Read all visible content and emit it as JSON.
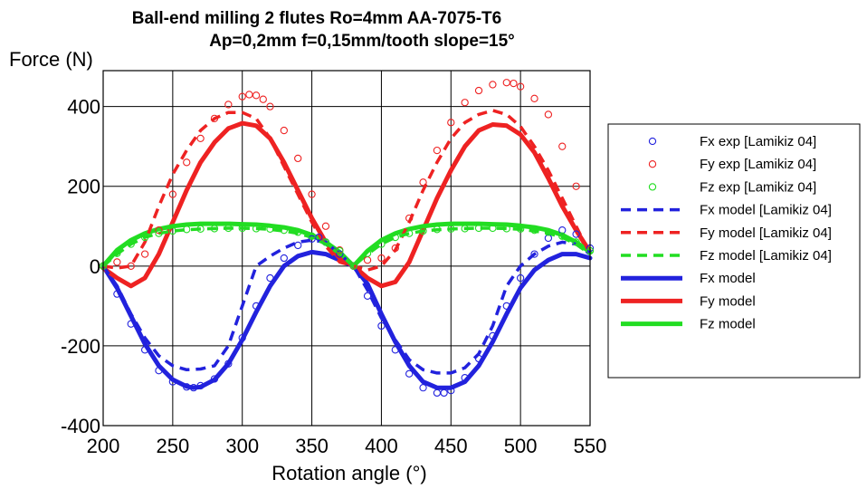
{
  "chart_data": {
    "type": "line",
    "title": "Ball-end milling 2 flutes Ro=4mm AA-7075-T6",
    "subtitle": "Ap=0,2mm f=0,15mm/tooth slope=15°",
    "xlabel": "Rotation angle (°)",
    "ylabel": "Force (N)",
    "xlim": [
      200,
      550
    ],
    "ylim": [
      -400,
      490
    ],
    "xticks": [
      200,
      250,
      300,
      350,
      400,
      450,
      500,
      550
    ],
    "yticks": [
      -400,
      -200,
      0,
      200,
      400
    ],
    "grid": true,
    "legend_position": "right",
    "series": [
      {
        "name": "Fx exp [Lamikiz 04]",
        "style": "markers",
        "color": "#2222dd",
        "x": [
          200,
          210,
          220,
          230,
          240,
          250,
          260,
          265,
          270,
          280,
          290,
          300,
          310,
          320,
          330,
          340,
          350,
          355,
          360,
          370,
          380,
          390,
          400,
          410,
          420,
          430,
          440,
          445,
          450,
          460,
          470,
          480,
          490,
          500,
          510,
          520,
          530,
          540,
          550
        ],
        "y": [
          0,
          -70,
          -145,
          -210,
          -262,
          -290,
          -303,
          -305,
          -300,
          -283,
          -245,
          -180,
          -100,
          -30,
          20,
          52,
          68,
          72,
          60,
          30,
          0,
          -75,
          -150,
          -210,
          -270,
          -305,
          -318,
          -318,
          -312,
          -280,
          -232,
          -175,
          -100,
          -30,
          30,
          70,
          90,
          80,
          45
        ]
      },
      {
        "name": "Fy exp [Lamikiz 04]",
        "style": "markers",
        "color": "#ee2222",
        "x": [
          200,
          210,
          220,
          230,
          240,
          250,
          260,
          270,
          280,
          290,
          300,
          305,
          310,
          315,
          320,
          330,
          340,
          350,
          360,
          370,
          380,
          390,
          400,
          410,
          420,
          430,
          440,
          450,
          460,
          470,
          480,
          490,
          495,
          500,
          510,
          520,
          530,
          540
        ],
        "y": [
          0,
          10,
          0,
          30,
          90,
          180,
          260,
          320,
          370,
          405,
          425,
          430,
          428,
          418,
          400,
          340,
          270,
          180,
          100,
          40,
          0,
          15,
          20,
          45,
          120,
          210,
          290,
          360,
          410,
          440,
          455,
          460,
          458,
          450,
          420,
          380,
          300,
          200
        ]
      },
      {
        "name": "Fz exp [Lamikiz 04]",
        "style": "markers",
        "color": "#22dd22",
        "x": [
          200,
          210,
          220,
          230,
          240,
          250,
          260,
          270,
          280,
          290,
          300,
          310,
          320,
          330,
          340,
          350,
          360,
          370,
          380,
          390,
          400,
          410,
          420,
          430,
          440,
          450,
          460,
          470,
          480,
          490,
          500,
          510,
          520,
          530,
          540,
          550
        ],
        "y": [
          0,
          32,
          55,
          72,
          82,
          88,
          92,
          93,
          94,
          95,
          95,
          94,
          93,
          90,
          85,
          75,
          60,
          38,
          0,
          32,
          55,
          72,
          82,
          88,
          92,
          93,
          94,
          95,
          95,
          94,
          93,
          90,
          85,
          75,
          60,
          38
        ]
      },
      {
        "name": "Fx model [Lamikiz 04]",
        "style": "dashed",
        "color": "#2222dd",
        "x": [
          200,
          210,
          220,
          230,
          240,
          250,
          260,
          270,
          280,
          290,
          300,
          310,
          320,
          330,
          340,
          350,
          360,
          370,
          380,
          390,
          400,
          410,
          420,
          430,
          440,
          450,
          460,
          470,
          480,
          490,
          500,
          510,
          520,
          530,
          540,
          550
        ],
        "y": [
          0,
          -50,
          -120,
          -180,
          -225,
          -250,
          -260,
          -258,
          -250,
          -200,
          -100,
          0,
          25,
          45,
          60,
          65,
          60,
          30,
          0,
          -60,
          -130,
          -185,
          -235,
          -260,
          -268,
          -268,
          -255,
          -220,
          -150,
          -50,
          0,
          30,
          50,
          60,
          55,
          30
        ]
      },
      {
        "name": "Fy model [Lamikiz 04]",
        "style": "dashed",
        "color": "#ee2222",
        "x": [
          200,
          210,
          220,
          230,
          240,
          250,
          260,
          270,
          280,
          290,
          300,
          310,
          320,
          330,
          340,
          350,
          360,
          370,
          380,
          390,
          400,
          410,
          420,
          430,
          440,
          450,
          460,
          470,
          480,
          490,
          500,
          510,
          520,
          530,
          540,
          550
        ],
        "y": [
          0,
          -5,
          0,
          60,
          150,
          230,
          290,
          340,
          370,
          385,
          385,
          370,
          320,
          250,
          180,
          110,
          50,
          10,
          0,
          -10,
          0,
          40,
          110,
          190,
          260,
          320,
          360,
          380,
          390,
          380,
          350,
          300,
          240,
          170,
          100,
          30
        ]
      },
      {
        "name": "Fz model [Lamikiz 04]",
        "style": "dashed",
        "color": "#22dd22",
        "x": [
          200,
          210,
          220,
          230,
          240,
          250,
          260,
          270,
          280,
          290,
          300,
          310,
          320,
          330,
          340,
          350,
          360,
          370,
          380,
          390,
          400,
          410,
          420,
          430,
          440,
          450,
          460,
          470,
          480,
          490,
          500,
          510,
          520,
          530,
          540,
          550
        ],
        "y": [
          0,
          30,
          55,
          72,
          82,
          88,
          91,
          93,
          94,
          95,
          95,
          94,
          92,
          88,
          82,
          72,
          55,
          30,
          0,
          30,
          55,
          72,
          82,
          88,
          91,
          93,
          94,
          95,
          95,
          94,
          92,
          88,
          82,
          72,
          55,
          30
        ]
      },
      {
        "name": "Fx model",
        "style": "solid",
        "color": "#2222dd",
        "x": [
          200,
          210,
          220,
          230,
          240,
          250,
          260,
          265,
          270,
          280,
          290,
          300,
          310,
          320,
          330,
          340,
          350,
          360,
          370,
          380,
          390,
          400,
          410,
          420,
          430,
          440,
          450,
          460,
          470,
          480,
          490,
          500,
          510,
          520,
          530,
          540,
          550
        ],
        "y": [
          0,
          -55,
          -125,
          -195,
          -250,
          -285,
          -302,
          -305,
          -303,
          -285,
          -245,
          -185,
          -115,
          -50,
          0,
          25,
          35,
          30,
          15,
          0,
          -45,
          -120,
          -190,
          -250,
          -290,
          -305,
          -305,
          -290,
          -250,
          -190,
          -120,
          -55,
          -10,
          15,
          30,
          30,
          20
        ]
      },
      {
        "name": "Fy model",
        "style": "solid",
        "color": "#ee2222",
        "x": [
          200,
          210,
          220,
          230,
          240,
          250,
          260,
          270,
          280,
          290,
          300,
          310,
          320,
          330,
          340,
          350,
          360,
          370,
          380,
          390,
          400,
          410,
          420,
          430,
          440,
          450,
          460,
          470,
          480,
          490,
          500,
          510,
          520,
          530,
          540,
          550
        ],
        "y": [
          -5,
          -30,
          -50,
          -30,
          30,
          110,
          190,
          260,
          310,
          345,
          358,
          352,
          320,
          260,
          190,
          120,
          60,
          20,
          0,
          -30,
          -50,
          -40,
          10,
          90,
          170,
          240,
          300,
          340,
          355,
          352,
          330,
          285,
          220,
          150,
          90,
          35
        ]
      },
      {
        "name": "Fz model",
        "style": "solid",
        "color": "#22dd22",
        "x": [
          200,
          210,
          220,
          230,
          240,
          250,
          260,
          270,
          280,
          290,
          300,
          310,
          320,
          330,
          340,
          350,
          360,
          370,
          380,
          390,
          400,
          410,
          420,
          430,
          440,
          450,
          460,
          470,
          480,
          490,
          500,
          510,
          520,
          530,
          540,
          550
        ],
        "y": [
          0,
          40,
          65,
          82,
          93,
          100,
          104,
          106,
          106,
          106,
          105,
          104,
          101,
          97,
          90,
          78,
          60,
          35,
          0,
          38,
          65,
          82,
          93,
          100,
          104,
          106,
          106,
          106,
          105,
          104,
          101,
          97,
          90,
          78,
          60,
          35
        ]
      }
    ]
  }
}
